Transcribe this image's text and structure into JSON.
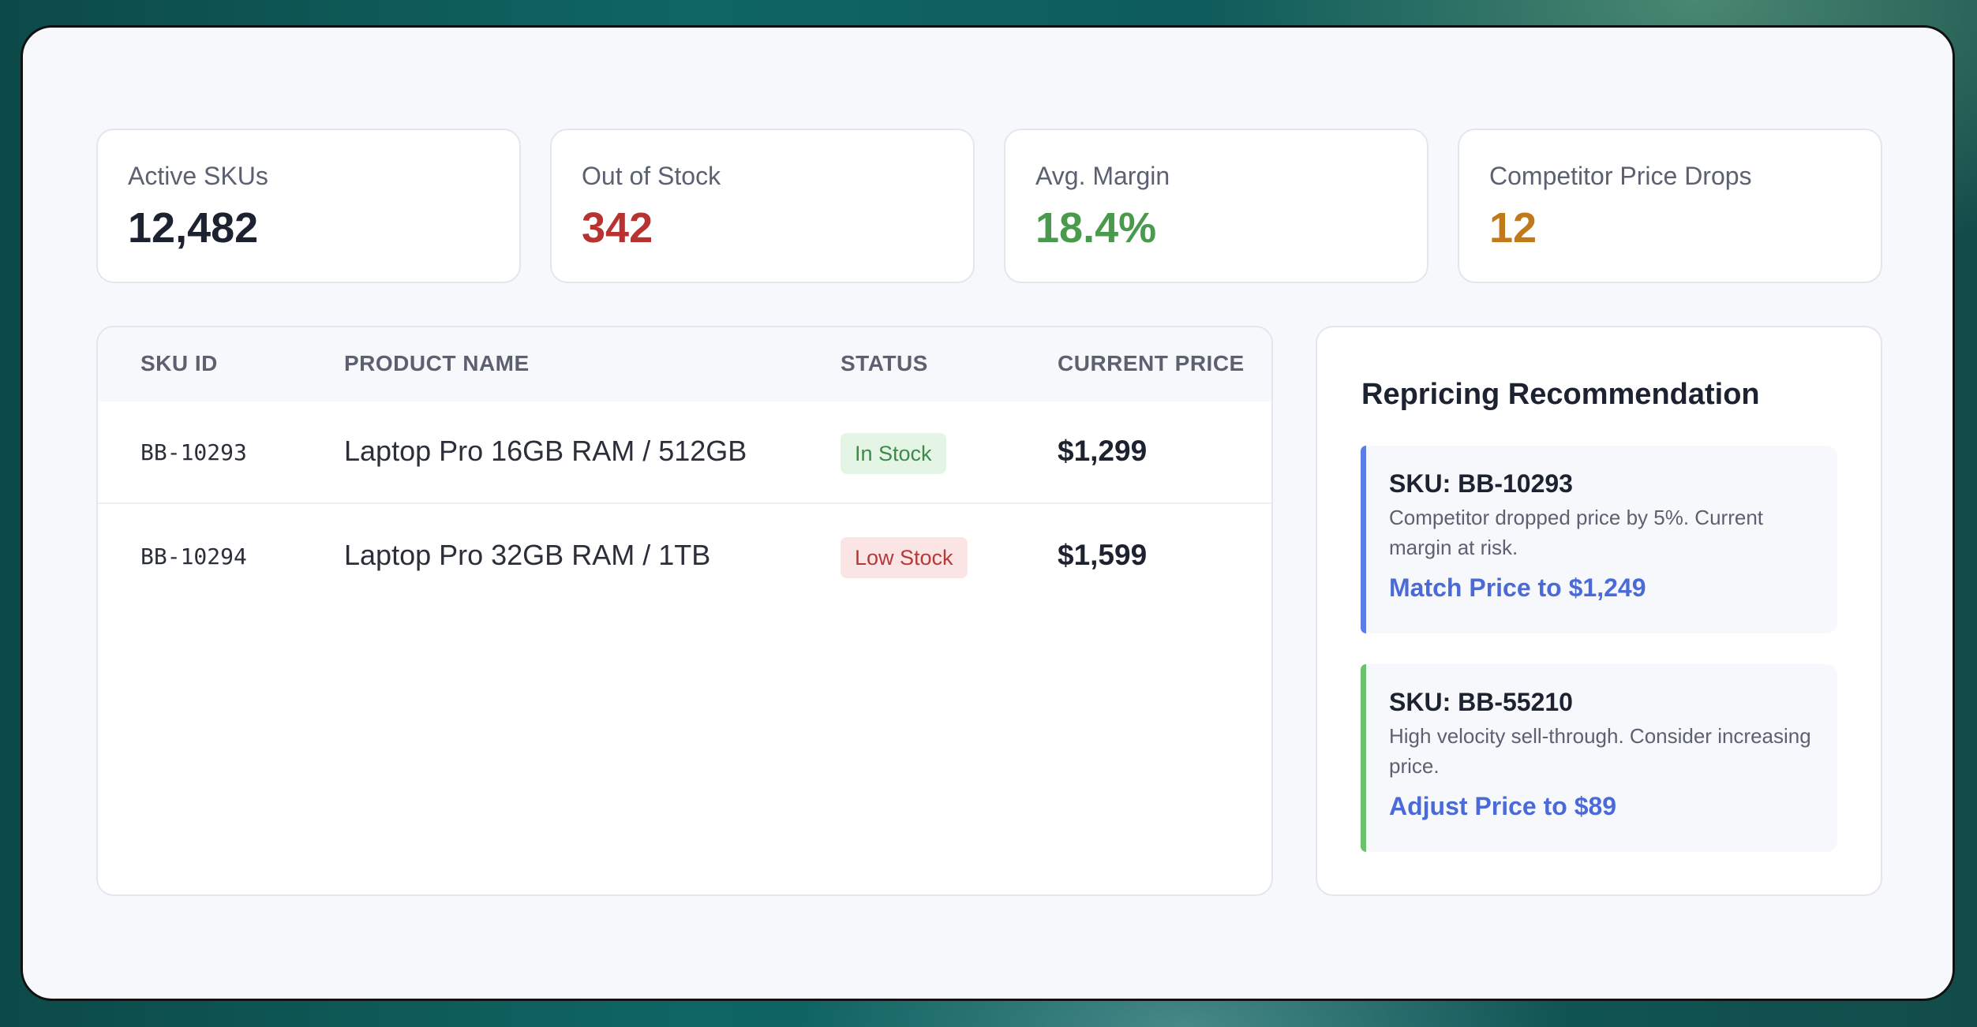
{
  "kpis": [
    {
      "label": "Active SKUs",
      "value": "12,482",
      "color": "#1c2230"
    },
    {
      "label": "Out of Stock",
      "value": "342",
      "color": "#b83232"
    },
    {
      "label": "Avg. Margin",
      "value": "18.4%",
      "color": "#4a9a4e"
    },
    {
      "label": "Competitor Price Drops",
      "value": "12",
      "color": "#c07a1c"
    }
  ],
  "table": {
    "headers": [
      "SKU ID",
      "PRODUCT NAME",
      "STATUS",
      "CURRENT PRICE"
    ],
    "rows": [
      {
        "sku": "BB-10293",
        "name": "Laptop Pro 16GB RAM / 512GB",
        "status": "In Stock",
        "status_color": "green",
        "price": "$1,299"
      },
      {
        "sku": "BB-10294",
        "name": "Laptop Pro 32GB RAM / 1TB",
        "status": "Low Stock",
        "status_color": "red",
        "price": "$1,599"
      }
    ]
  },
  "recommendation": {
    "title": "Repricing Recommendation",
    "items": [
      {
        "sku": "SKU: BB-10293",
        "description": "Competitor dropped price by 5%. Current margin at risk.",
        "action": "Match Price to $1,249",
        "accent": "#5b7ee6"
      },
      {
        "sku": "SKU: BB-55210",
        "description": "High velocity sell-through. Consider increasing price.",
        "action": "Adjust Price to $89",
        "accent": "#6cc26c"
      }
    ]
  }
}
